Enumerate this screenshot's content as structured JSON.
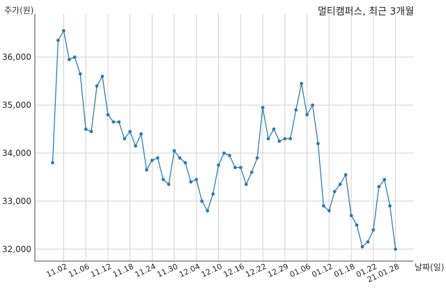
{
  "chart_data": {
    "type": "line",
    "title": "멀티캠퍼스, 최근 3개월",
    "ylabel": "주가(원)",
    "xlabel": "날짜(일)",
    "ylim": [
      31750,
      36900
    ],
    "yticks": [
      32000,
      33000,
      34000,
      35000,
      36000
    ],
    "ytick_labels": [
      "32,000",
      "33,000",
      "34,000",
      "35,000",
      "36,000"
    ],
    "xtick_labels": [
      "11.02",
      "11.06",
      "11.12",
      "11.18",
      "11.24",
      "11.30",
      "12.04",
      "12.10",
      "12.16",
      "12.22",
      "12.29",
      "01.06",
      "01.12",
      "01.18",
      "01.22",
      "21.01.28"
    ],
    "xtick_positions": [
      2,
      6,
      10,
      14,
      18,
      22,
      26,
      30,
      34,
      38,
      42,
      46,
      50,
      54,
      58,
      62
    ],
    "grid": true,
    "color": "#2b7bb0",
    "values": [
      33800,
      36350,
      36550,
      35950,
      36000,
      35650,
      34500,
      34450,
      35400,
      35600,
      34800,
      34650,
      34650,
      34300,
      34450,
      34150,
      34400,
      33650,
      33850,
      33900,
      33450,
      33350,
      34050,
      33900,
      33800,
      33400,
      33450,
      33000,
      32800,
      33150,
      33750,
      34000,
      33950,
      33700,
      33700,
      33350,
      33600,
      33900,
      34950,
      34300,
      34500,
      34250,
      34300,
      34300,
      34900,
      35450,
      34800,
      35000,
      34200,
      32900,
      32800,
      33200,
      33350,
      33550,
      32700,
      32500,
      32050,
      32150,
      32400,
      33300,
      33450,
      32900,
      32000
    ]
  }
}
